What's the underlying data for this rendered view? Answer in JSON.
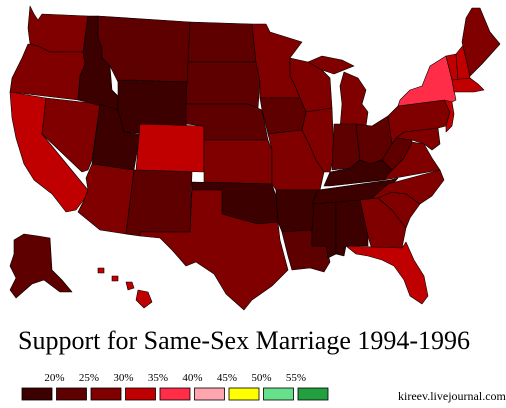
{
  "title": "Support for Same-Sex Marriage 1994-1996",
  "credit": "kireev.livejournal.com",
  "colors": {
    "c1": "#3d0000",
    "c2": "#5e0000",
    "c3": "#800000",
    "c4": "#c00000",
    "c5": "#ff2d47",
    "c6": "#ffa5b0",
    "c7": "#ffff00",
    "c8": "#66e08a",
    "c9": "#22a040",
    "border": "#000000"
  },
  "legend": {
    "swatch_colors": [
      "#3d0000",
      "#5e0000",
      "#800000",
      "#c00000",
      "#ff2d47",
      "#ffa5b0",
      "#ffff00",
      "#66e08a",
      "#22a040"
    ],
    "labels": [
      "20%",
      "25%",
      "30%",
      "35%",
      "40%",
      "45%",
      "50%",
      "55%"
    ]
  },
  "regions": {
    "WA": "c3",
    "OR": "c3",
    "CA": "c4",
    "NV": "c3",
    "ID": "c1",
    "MT": "c2",
    "WY": "c1",
    "UT": "c1",
    "AZ": "c3",
    "CO": "c4",
    "NM": "c2",
    "ND": "c2",
    "SD": "c2",
    "NE": "c2",
    "KS": "c3",
    "OK": "c1",
    "TX": "c3",
    "MN": "c3",
    "IA": "c2",
    "MO": "c3",
    "AR": "c1",
    "LA": "c2",
    "WI": "c3",
    "IL": "c3",
    "MI": "c3",
    "IN": "c2",
    "OH": "c2",
    "KY": "c1",
    "TN": "c1",
    "MS": "c1",
    "AL": "c1",
    "GA": "c3",
    "FL": "c4",
    "SC": "c3",
    "NC": "c3",
    "VA": "c3",
    "WV": "c2",
    "PA": "c3",
    "NY": "c5",
    "ME": "c3",
    "NH": "c4",
    "VT": "c4",
    "MA": "c4",
    "NJ": "c4",
    "MD": "c3",
    "AK": "c2",
    "HI": "c4"
  }
}
